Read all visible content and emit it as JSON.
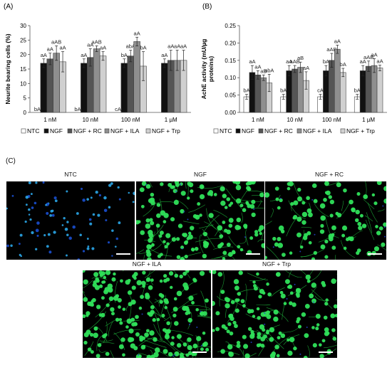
{
  "panel_c_label": "(C)",
  "chart_data": [
    {
      "type": "bar",
      "panel_label": "(A)",
      "ylabel": "Neurite bearing cells (%)",
      "categories": [
        "1 nM",
        "10 nM",
        "100 nM",
        "1 µM"
      ],
      "ylim": [
        0,
        30
      ],
      "yticks": [
        "0",
        "5",
        "10",
        "15",
        "20",
        "25",
        "30"
      ],
      "series": [
        {
          "name": "NTC",
          "values": [
            0,
            0,
            0,
            0
          ],
          "errors": [
            0,
            0,
            0,
            0
          ],
          "labels": [
            "bA",
            "bA",
            "cA",
            ""
          ],
          "color": "#ffffff"
        },
        {
          "name": "NGF",
          "values": [
            17,
            17,
            17,
            17
          ],
          "errors": [
            1.5,
            1.5,
            1.5,
            1.5
          ],
          "labels": [
            "aA",
            "aA",
            "bA",
            "aA"
          ],
          "color": "#111111"
        },
        {
          "name": "NGF + RC",
          "values": [
            18.5,
            19,
            19.5,
            18
          ],
          "errors": [
            2,
            3,
            2,
            3.5
          ],
          "labels": [
            "aA",
            "aA",
            "abA",
            "aA"
          ],
          "color": "#555555"
        },
        {
          "name": "NGF + ILA",
          "values": [
            20.5,
            22,
            24.5,
            18
          ],
          "errors": [
            2.5,
            1,
            1.5,
            3.5
          ],
          "labels": [
            "aAB",
            "aAB",
            "aA",
            "aA"
          ],
          "color": "#8f8f8f"
        },
        {
          "name": "NGF + Trp",
          "values": [
            17.5,
            19.5,
            16,
            18
          ],
          "errors": [
            3.5,
            1.5,
            5,
            3.5
          ],
          "labels": [
            "aA",
            "aA",
            "bA",
            "aA"
          ],
          "color": "#d0d0d0"
        }
      ]
    },
    {
      "type": "bar",
      "panel_label": "(B)",
      "ylabel": "AchE activity (mU/µg proteins)",
      "ylabel_lines": [
        "AchE activity (mU/µg",
        "proteins)"
      ],
      "categories": [
        "1 nM",
        "10 nM",
        "100 nM",
        "1 µM"
      ],
      "ylim": [
        0,
        0.25
      ],
      "yticks": [
        "0.00",
        "0.05",
        "0.10",
        "0.15",
        "0.20",
        "0.25"
      ],
      "series": [
        {
          "name": "NTC",
          "values": [
            0.045,
            0.045,
            0.045,
            0.045
          ],
          "errors": [
            0.007,
            0.007,
            0.007,
            0.007
          ],
          "labels": [
            "bA",
            "bA",
            "cA",
            "bA"
          ],
          "color": "#ffffff"
        },
        {
          "name": "NGF",
          "values": [
            0.115,
            0.12,
            0.12,
            0.12
          ],
          "errors": [
            0.02,
            0.015,
            0.015,
            0.015
          ],
          "labels": [
            "aA",
            "aA",
            "bA",
            "aA"
          ],
          "color": "#111111"
        },
        {
          "name": "NGF + RC",
          "values": [
            0.108,
            0.125,
            0.15,
            0.133
          ],
          "errors": [
            0.012,
            0.01,
            0.02,
            0.015
          ],
          "labels": [
            "aA",
            "aAB",
            "aAB",
            "aAB"
          ],
          "color": "#555555"
        },
        {
          "name": "NGF + ILA",
          "values": [
            0.1,
            0.13,
            0.182,
            0.135
          ],
          "errors": [
            0.008,
            0.015,
            0.012,
            0.02
          ],
          "labels": [
            "aB",
            "aB",
            "aA",
            "aA"
          ],
          "color": "#8f8f8f"
        },
        {
          "name": "NGF + Trp",
          "values": [
            0.085,
            0.092,
            0.115,
            0.128
          ],
          "errors": [
            0.025,
            0.025,
            0.012,
            0.008
          ],
          "labels": [
            "abA",
            "aA",
            "bA",
            "aA"
          ],
          "color": "#d0d0d0"
        }
      ]
    }
  ],
  "micrographs": [
    {
      "title": "NTC",
      "style": "ntc",
      "density": 85
    },
    {
      "title": "NGF",
      "style": "ngf",
      "density": 150
    },
    {
      "title": "NGF + RC",
      "style": "ngf",
      "density": 95
    },
    {
      "title": "NGF + ILA",
      "style": "ngf",
      "density": 190
    },
    {
      "title": "NGF + Trp",
      "style": "ngf",
      "density": 140
    }
  ],
  "colors": {
    "nucleus_blue": "#2aa6e8",
    "cell_green": "#2fe05a",
    "neurite_green": "#1fb83c",
    "background": "#000000"
  }
}
